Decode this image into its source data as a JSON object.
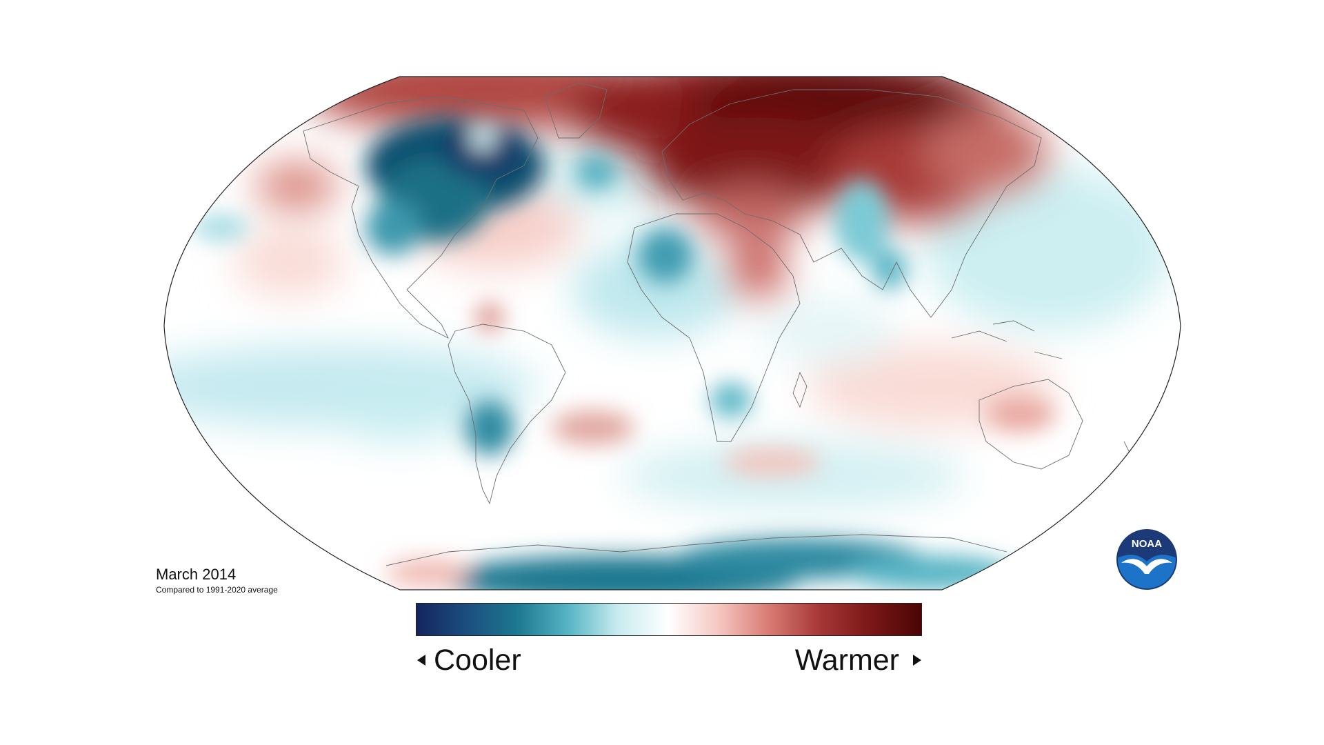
{
  "map": {
    "date_label": "March 2014",
    "baseline_label": "Compared to 1991-2020 average",
    "projection": "robinson-like ellipse"
  },
  "legend": {
    "cool_label": "Cooler",
    "warm_label": "Warmer",
    "gradient_colors": [
      "#15255e",
      "#1b4e7f",
      "#1d7890",
      "#56b4c4",
      "#c9ecf0",
      "#ffffff",
      "#f5c6c0",
      "#d77a72",
      "#a63636",
      "#7a1717",
      "#4a0505"
    ]
  },
  "logo": {
    "text": "NOAA",
    "icon": "noaa-logo-icon",
    "color_top": "#1c3a78",
    "color_bottom": "#1d73c7"
  },
  "colors": {
    "deep_cool": "#0f4f6e",
    "cool": "#5dbccd",
    "light_cool": "#bfe8ee",
    "light_warm": "#f7d0cb",
    "warm": "#c65a55",
    "deep_warm": "#6e0f0f"
  }
}
